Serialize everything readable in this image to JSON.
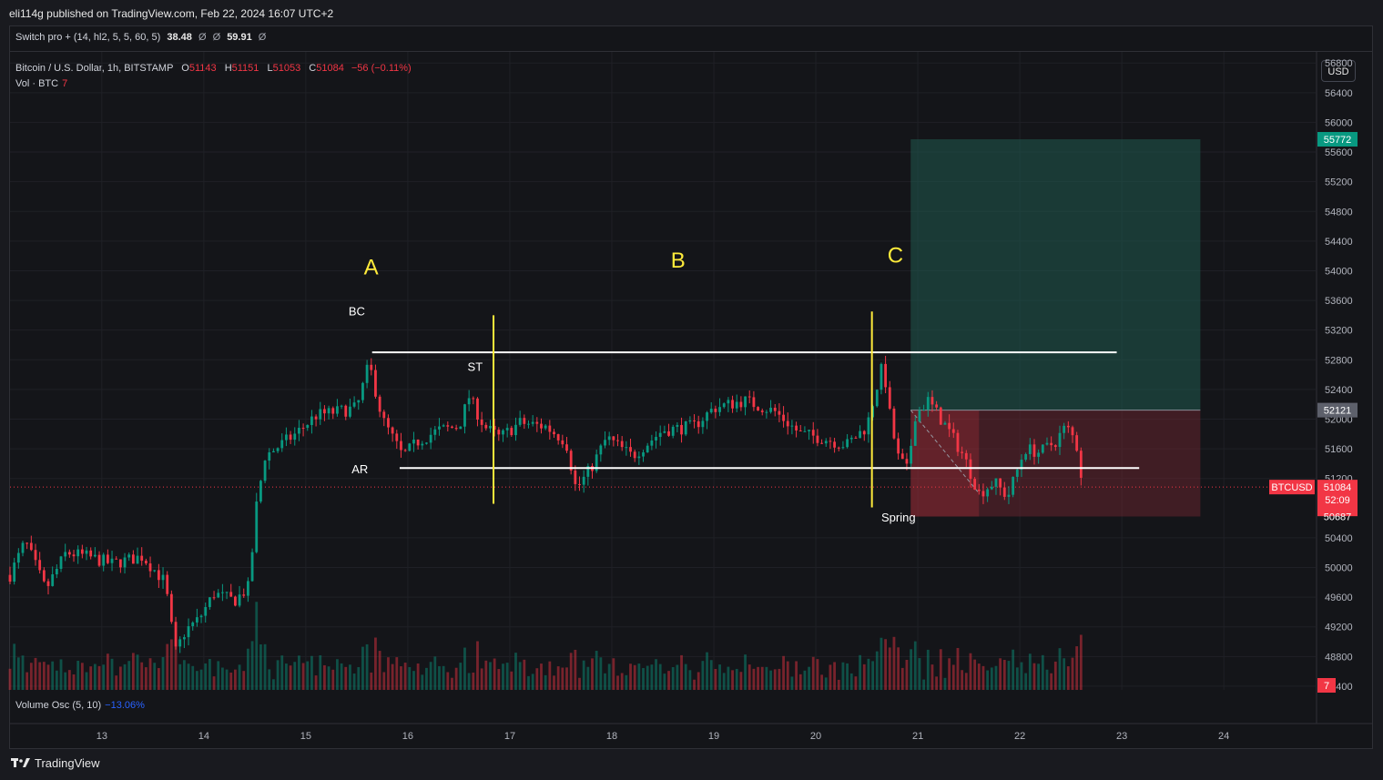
{
  "header": {
    "published": "eli114g published on TradingView.com, Feb 22, 2024 16:07 UTC+2"
  },
  "indicator": {
    "label": "Switch pro + (14, hl2, 5, 5, 60, 5)",
    "value1": "38.48",
    "na1": "Ø",
    "na2": "Ø",
    "value2": "59.91",
    "na3": "Ø"
  },
  "symbol": {
    "title": "Bitcoin / U.S. Dollar, 1h, BITSTAMP",
    "o_label": "O",
    "o": "51143",
    "h_label": "H",
    "h": "51151",
    "l_label": "L",
    "l": "51053",
    "c_label": "C",
    "c": "51084",
    "change": "−56 (−0.11%)"
  },
  "volume": {
    "label": "Vol · BTC",
    "value": "7"
  },
  "currency": "USD",
  "volume_osc": {
    "label": "Volume Osc (5, 10)",
    "value": "−13.06%"
  },
  "footer": {
    "brand": "TradingView"
  },
  "colors": {
    "up": "#089981",
    "down": "#f23645",
    "annotation_yellow": "#ffeb3b",
    "target_zone": "#1f5a4f",
    "stop_zone": "#6b2530"
  },
  "icons": {
    "logo": "tradingview-logo-icon"
  },
  "chart_data": {
    "type": "candlestick",
    "y_axis": {
      "ticks": [
        56800,
        56400,
        56000,
        55600,
        55200,
        54800,
        54400,
        54000,
        53600,
        53200,
        52800,
        52400,
        52000,
        51600,
        51200,
        50400,
        50000,
        49600,
        49200,
        48800,
        48400
      ],
      "labels": [
        "56800",
        "56400",
        "56000",
        "55600",
        "55200",
        "54800",
        "54400",
        "54000",
        "53600",
        "53200",
        "52800",
        "52400",
        "52000",
        "51600",
        "51200",
        "50400",
        "50000",
        "49600",
        "49200",
        "48800",
        "48400"
      ],
      "range": [
        48350,
        56950
      ]
    },
    "x_axis": {
      "labels": [
        "13",
        "14",
        "15",
        "16",
        "17",
        "18",
        "19",
        "20",
        "21",
        "22",
        "23",
        "24"
      ],
      "days": [
        13,
        14,
        15,
        16,
        17,
        18,
        19,
        20,
        21,
        22,
        23,
        24
      ],
      "range": [
        12.1,
        24.9
      ]
    },
    "price_labels": {
      "target": {
        "value": 55772,
        "text": "55772"
      },
      "entry": {
        "value": 52121,
        "text": "52121"
      },
      "current": {
        "value": 51084,
        "text": "51084",
        "countdown": "52:09",
        "symbol": "BTCUSD"
      },
      "stop": {
        "value": 50687,
        "text": "50687"
      },
      "volume_badge": "7"
    },
    "position_tool": {
      "start_day": 20.93,
      "end_day": 23.77,
      "target": 55772,
      "entry": 52121,
      "stop": 50687,
      "fill_end_day": 21.6
    },
    "range_lines": {
      "resistance": {
        "value": 52900,
        "from_day": 15.65,
        "to_day": 22.95
      },
      "support": {
        "value": 51340,
        "from_day": 15.92,
        "to_day": 23.17
      }
    },
    "vertical_lines": [
      {
        "day": 16.84,
        "from": 51350,
        "to": 53400
      },
      {
        "day": 20.55,
        "from": 51300,
        "to": 53450
      }
    ],
    "phase_labels": [
      {
        "text": "A",
        "day": 15.64,
        "price": 53950
      },
      {
        "text": "B",
        "day": 18.65,
        "price": 54040
      },
      {
        "text": "C",
        "day": 20.78,
        "price": 54110
      }
    ],
    "event_labels": [
      {
        "text": "BC",
        "day": 15.5,
        "price": 53400
      },
      {
        "text": "ST",
        "day": 16.66,
        "price": 52650
      },
      {
        "text": "AR",
        "day": 15.53,
        "price": 51270
      },
      {
        "text": "Spring",
        "day": 20.81,
        "price": 50620
      }
    ],
    "path": [
      [
        12.1,
        49900
      ],
      [
        12.25,
        50350
      ],
      [
        12.45,
        49700
      ],
      [
        12.65,
        50200
      ],
      [
        12.85,
        50150
      ],
      [
        13.1,
        50050
      ],
      [
        13.4,
        50150
      ],
      [
        13.62,
        49800
      ],
      [
        13.72,
        48850
      ],
      [
        13.82,
        49150
      ],
      [
        13.95,
        49300
      ],
      [
        14.1,
        49650
      ],
      [
        14.3,
        49550
      ],
      [
        14.45,
        49750
      ],
      [
        14.5,
        50700
      ],
      [
        14.6,
        51500
      ],
      [
        14.9,
        51800
      ],
      [
        15.1,
        52050
      ],
      [
        15.3,
        52100
      ],
      [
        15.5,
        52150
      ],
      [
        15.62,
        52750
      ],
      [
        15.75,
        52000
      ],
      [
        15.95,
        51500
      ],
      [
        16.1,
        51700
      ],
      [
        16.3,
        51850
      ],
      [
        16.5,
        51900
      ],
      [
        16.6,
        52300
      ],
      [
        16.75,
        51900
      ],
      [
        16.9,
        51750
      ],
      [
        17.1,
        51950
      ],
      [
        17.35,
        51900
      ],
      [
        17.55,
        51700
      ],
      [
        17.65,
        51050
      ],
      [
        17.8,
        51350
      ],
      [
        17.95,
        51750
      ],
      [
        18.2,
        51500
      ],
      [
        18.5,
        51850
      ],
      [
        18.8,
        51900
      ],
      [
        19.0,
        52150
      ],
      [
        19.3,
        52250
      ],
      [
        19.6,
        52100
      ],
      [
        19.85,
        51800
      ],
      [
        20.05,
        51750
      ],
      [
        20.3,
        51650
      ],
      [
        20.5,
        51900
      ],
      [
        20.6,
        52450
      ],
      [
        20.66,
        52750
      ],
      [
        20.72,
        52100
      ],
      [
        20.8,
        51500
      ],
      [
        20.9,
        51300
      ],
      [
        20.97,
        52050
      ],
      [
        21.1,
        52250
      ],
      [
        21.3,
        51850
      ],
      [
        21.45,
        51500
      ],
      [
        21.6,
        51000
      ],
      [
        21.75,
        51150
      ],
      [
        21.88,
        50950
      ],
      [
        22.05,
        51600
      ],
      [
        22.2,
        51550
      ],
      [
        22.35,
        51700
      ],
      [
        22.45,
        51900
      ],
      [
        22.55,
        51700
      ],
      [
        22.62,
        51084
      ]
    ],
    "volume_scale": [
      0,
      40
    ],
    "volume_baseline": 4
  }
}
